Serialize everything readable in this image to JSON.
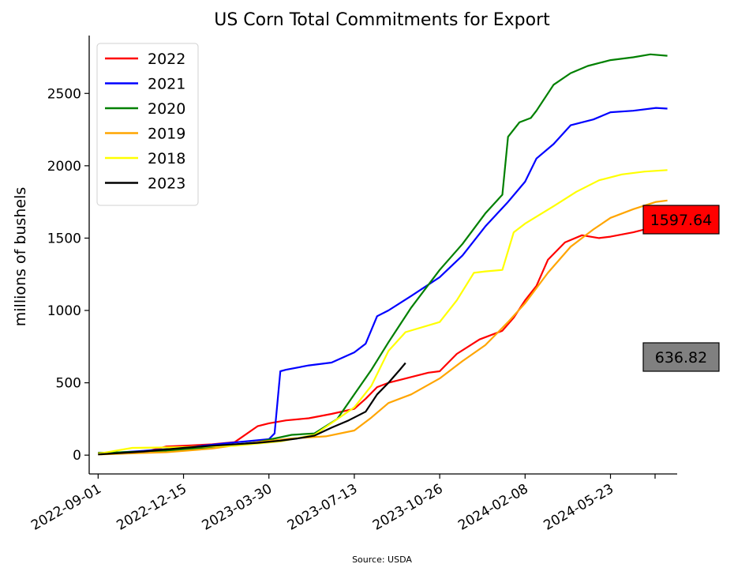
{
  "chart_data": {
    "type": "line",
    "title": "US Corn Total Commitments for Export",
    "ylabel": "millions of bushels",
    "xlabel": "",
    "source": "Source: USDA",
    "xlim": [
      "2022-08-21",
      "2024-08-13"
    ],
    "ylim": [
      -130,
      2900
    ],
    "yticks": [
      0,
      500,
      1000,
      1500,
      2000,
      2500
    ],
    "xticks": [
      "2022-09-01",
      "2022-12-15",
      "2023-03-30",
      "2023-07-13",
      "2023-10-26",
      "2024-02-08",
      "2024-05-23"
    ],
    "grid": false,
    "legend_position": "top-left",
    "value_boxes": [
      {
        "label": "1597.64",
        "value": 1597.64,
        "color": "#ff0000"
      },
      {
        "label": "636.82",
        "value": 636.82,
        "color": "#808080"
      }
    ],
    "series": [
      {
        "name": "2022",
        "color": "#ff0000",
        "x": [
          "2022-09-01",
          "2022-09-29",
          "2022-10-27",
          "2022-11-24",
          "2022-12-15",
          "2023-01-19",
          "2023-02-16",
          "2023-03-16",
          "2023-03-30",
          "2023-04-20",
          "2023-05-18",
          "2023-06-15",
          "2023-07-13",
          "2023-07-27",
          "2023-08-10",
          "2023-08-24",
          "2023-09-21",
          "2023-10-12",
          "2023-10-26",
          "2023-11-16",
          "2023-12-14",
          "2024-01-11",
          "2024-01-25",
          "2024-02-08",
          "2024-02-22",
          "2024-03-07",
          "2024-03-28",
          "2024-04-18",
          "2024-05-09",
          "2024-05-23",
          "2024-06-20",
          "2024-07-18",
          "2024-08-01"
        ],
        "values": [
          15,
          15,
          20,
          60,
          65,
          75,
          90,
          200,
          220,
          240,
          255,
          285,
          320,
          390,
          470,
          500,
          540,
          570,
          580,
          700,
          800,
          860,
          950,
          1070,
          1170,
          1350,
          1470,
          1520,
          1500,
          1510,
          1540,
          1580,
          1598
        ]
      },
      {
        "name": "2021",
        "color": "#0000ff",
        "x": [
          "2022-09-01",
          "2022-10-27",
          "2022-12-15",
          "2023-02-02",
          "2023-03-30",
          "2023-04-06",
          "2023-04-13",
          "2023-04-20",
          "2023-05-18",
          "2023-06-15",
          "2023-07-13",
          "2023-07-27",
          "2023-08-10",
          "2023-08-24",
          "2023-09-21",
          "2023-10-26",
          "2023-11-23",
          "2023-12-21",
          "2024-01-18",
          "2024-02-08",
          "2024-02-22",
          "2024-03-14",
          "2024-04-04",
          "2024-05-02",
          "2024-05-23",
          "2024-06-20",
          "2024-07-18",
          "2024-08-01"
        ],
        "values": [
          10,
          30,
          50,
          80,
          110,
          150,
          580,
          590,
          620,
          640,
          710,
          770,
          960,
          1000,
          1100,
          1230,
          1380,
          1580,
          1750,
          1890,
          2050,
          2150,
          2280,
          2320,
          2370,
          2380,
          2400,
          2395
        ]
      },
      {
        "name": "2020",
        "color": "#008000",
        "x": [
          "2022-09-01",
          "2022-11-24",
          "2023-01-19",
          "2023-03-16",
          "2023-04-27",
          "2023-05-25",
          "2023-06-22",
          "2023-07-13",
          "2023-08-03",
          "2023-08-24",
          "2023-09-21",
          "2023-10-26",
          "2023-11-23",
          "2023-12-21",
          "2024-01-11",
          "2024-01-18",
          "2024-02-01",
          "2024-02-15",
          "2024-02-22",
          "2024-03-14",
          "2024-04-04",
          "2024-04-25",
          "2024-05-23",
          "2024-06-20",
          "2024-07-11",
          "2024-08-01"
        ],
        "values": [
          15,
          30,
          55,
          90,
          140,
          150,
          250,
          420,
          590,
          780,
          1020,
          1280,
          1460,
          1670,
          1800,
          2200,
          2300,
          2330,
          2380,
          2560,
          2640,
          2690,
          2730,
          2750,
          2770,
          2760
        ]
      },
      {
        "name": "2019",
        "color": "#ffa500",
        "x": [
          "2022-09-01",
          "2022-11-24",
          "2023-01-19",
          "2023-03-16",
          "2023-04-27",
          "2023-06-08",
          "2023-07-13",
          "2023-08-03",
          "2023-08-24",
          "2023-09-21",
          "2023-10-26",
          "2023-11-23",
          "2023-12-21",
          "2024-01-18",
          "2024-02-08",
          "2024-03-07",
          "2024-04-04",
          "2024-05-02",
          "2024-05-23",
          "2024-06-20",
          "2024-07-18",
          "2024-08-01"
        ],
        "values": [
          5,
          20,
          45,
          90,
          115,
          130,
          170,
          260,
          360,
          420,
          530,
          650,
          760,
          920,
          1050,
          1260,
          1440,
          1560,
          1640,
          1700,
          1750,
          1760
        ]
      },
      {
        "name": "2018",
        "color": "#ffff00",
        "x": [
          "2022-09-01",
          "2022-10-13",
          "2022-12-15",
          "2023-02-16",
          "2023-04-13",
          "2023-05-25",
          "2023-07-13",
          "2023-08-03",
          "2023-08-24",
          "2023-09-14",
          "2023-10-26",
          "2023-11-16",
          "2023-12-07",
          "2023-12-21",
          "2024-01-11",
          "2024-01-25",
          "2024-02-08",
          "2024-03-14",
          "2024-04-11",
          "2024-05-09",
          "2024-06-06",
          "2024-07-04",
          "2024-08-01"
        ],
        "values": [
          10,
          50,
          55,
          65,
          95,
          140,
          330,
          480,
          720,
          850,
          920,
          1070,
          1260,
          1270,
          1280,
          1540,
          1600,
          1720,
          1820,
          1900,
          1940,
          1960,
          1970
        ]
      },
      {
        "name": "2023",
        "color": "#000000",
        "x": [
          "2022-09-01",
          "2022-10-27",
          "2022-12-15",
          "2023-01-19",
          "2023-03-16",
          "2023-04-13",
          "2023-05-04",
          "2023-05-25",
          "2023-06-15",
          "2023-07-06",
          "2023-07-27",
          "2023-08-10",
          "2023-08-24",
          "2023-09-07",
          "2023-09-14"
        ],
        "values": [
          5,
          25,
          50,
          65,
          85,
          100,
          115,
          135,
          190,
          240,
          300,
          420,
          500,
          590,
          636.82
        ]
      }
    ]
  }
}
